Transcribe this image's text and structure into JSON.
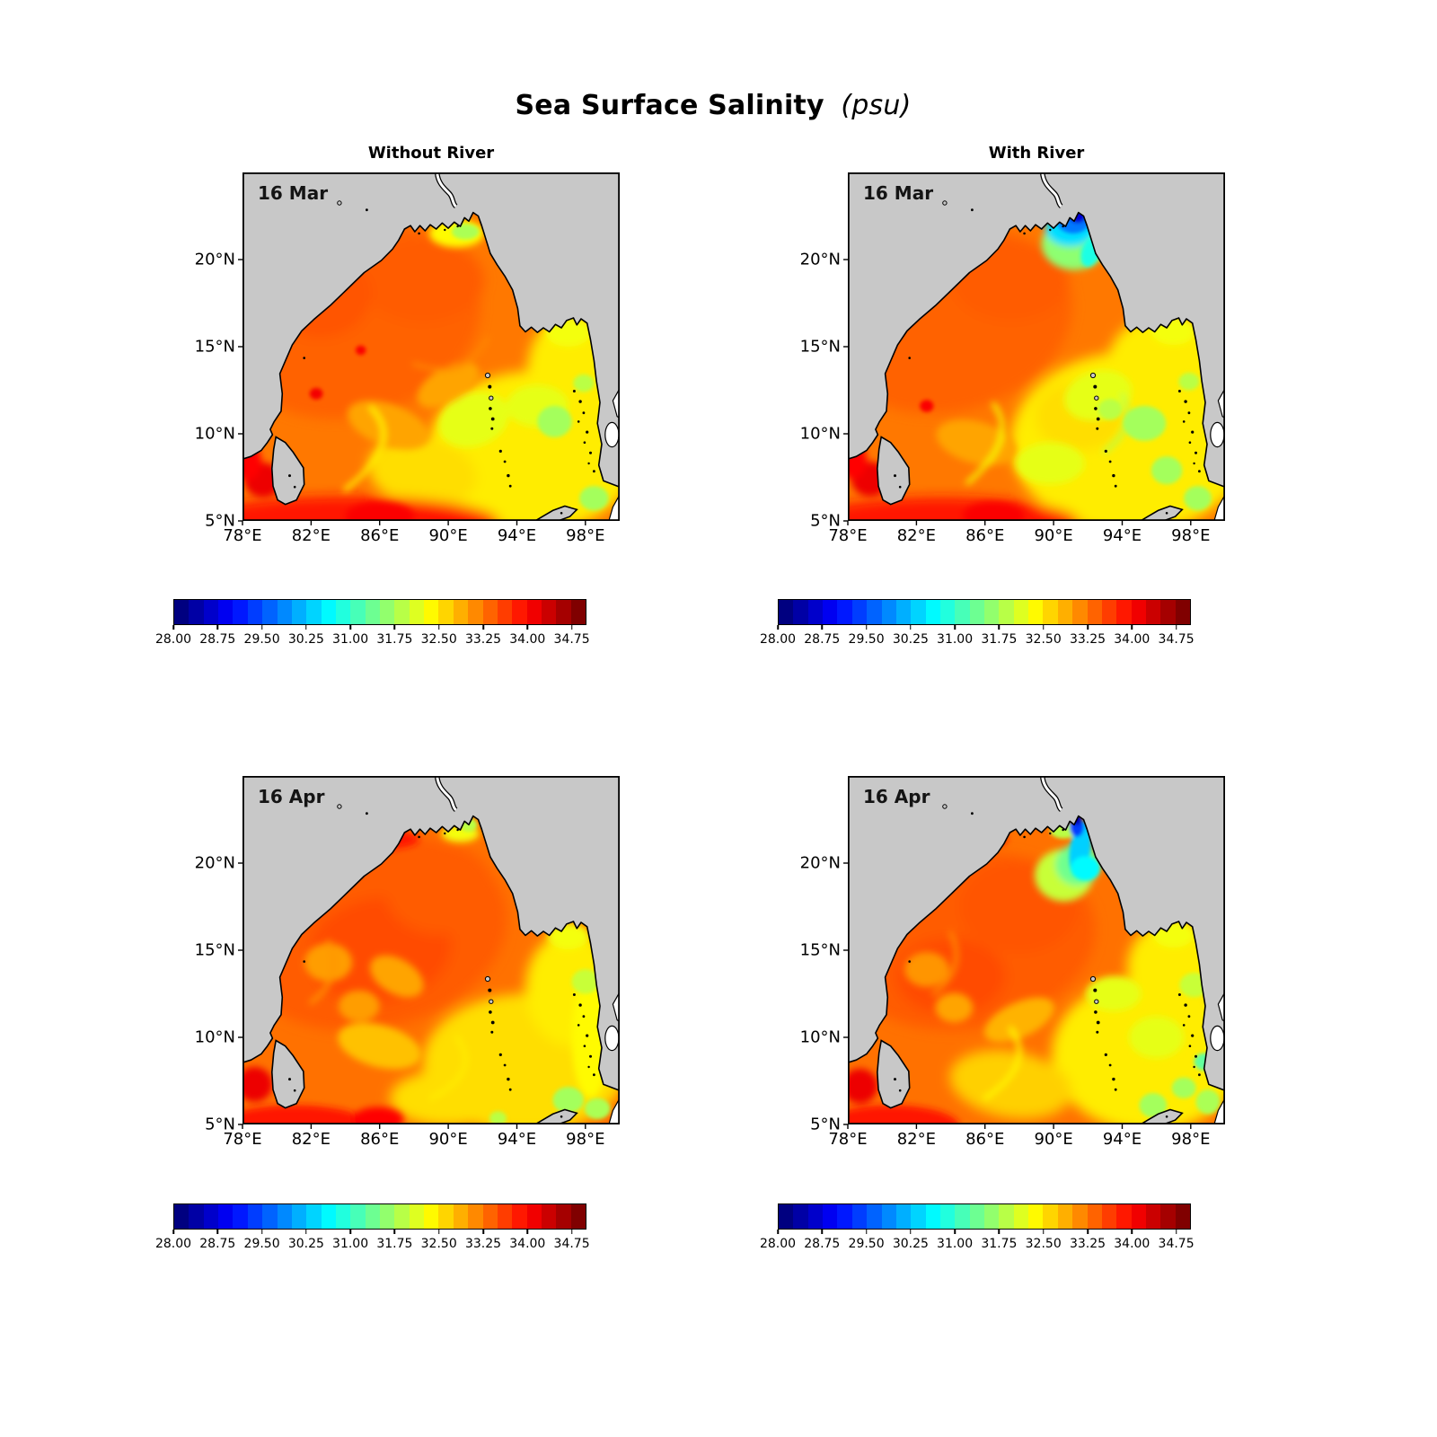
{
  "figure": {
    "title": "Sea Surface Salinity",
    "title_unit": "(psu)",
    "background": "#ffffff"
  },
  "columns": [
    {
      "title": "Without River"
    },
    {
      "title": "With River"
    }
  ],
  "panels": [
    {
      "scenario": "Without River",
      "date_label": "16 Mar",
      "row": 0,
      "col": 0
    },
    {
      "scenario": "With River",
      "date_label": "16 Mar",
      "row": 0,
      "col": 1
    },
    {
      "scenario": "Without River",
      "date_label": "16 Apr",
      "row": 1,
      "col": 0
    },
    {
      "scenario": "With River",
      "date_label": "16 Apr",
      "row": 1,
      "col": 1
    }
  ],
  "axes": {
    "x_tick_labels": [
      "78°E",
      "82°E",
      "86°E",
      "90°E",
      "94°E",
      "98°E"
    ],
    "x_tick_values": [
      78,
      82,
      86,
      90,
      94,
      98
    ],
    "y_tick_labels": [
      "5°N",
      "10°N",
      "15°N",
      "20°N"
    ],
    "y_tick_values": [
      5,
      10,
      15,
      20
    ],
    "lon_range": [
      78,
      100
    ],
    "lat_range": [
      5,
      25
    ]
  },
  "colorbar": {
    "tick_labels": [
      "28.00",
      "28.75",
      "29.50",
      "30.25",
      "31.00",
      "31.75",
      "32.50",
      "33.25",
      "34.00",
      "34.75"
    ],
    "tick_values": [
      28.0,
      28.75,
      29.5,
      30.25,
      31.0,
      31.75,
      32.5,
      33.25,
      34.0,
      34.75
    ],
    "vmin": 28,
    "vmax": 35,
    "n_levels": 28,
    "colormap": "jet"
  },
  "colors": {
    "land": "#c8c8c8",
    "coastline": "#000000",
    "frame": "#000000",
    "outside_domain": "#ffffff",
    "plume_core": "#0000d7",
    "open_ocean_orange": "#ff7800"
  },
  "chart_data": {
    "type": "heatmap",
    "title": "Sea Surface Salinity (psu)",
    "region": "Bay of Bengal",
    "grid": "2 columns (Without River, With River) x 2 rows (16 Mar, 16 Apr); one jet colorbar under each panel",
    "x": {
      "label": "Longitude",
      "unit": "°E",
      "ticks": [
        78,
        82,
        86,
        90,
        94,
        98
      ],
      "range": [
        78,
        100
      ]
    },
    "y": {
      "label": "Latitude",
      "unit": "°N",
      "ticks": [
        5,
        10,
        15,
        20
      ],
      "range": [
        5,
        25
      ]
    },
    "color_scale": {
      "colormap": "jet",
      "unit": "psu",
      "min": 28,
      "max": 35,
      "levels": 28,
      "ticks": [
        28.0,
        28.75,
        29.5,
        30.25,
        31.0,
        31.75,
        32.5,
        33.25,
        34.0,
        34.75
      ]
    },
    "panels": [
      {
        "row": 0,
        "col": 0,
        "scenario": "Without River",
        "date": "16 Mar",
        "open_ocean_psu": [
          32.5,
          34.25
        ],
        "south_boundary_psu": 34.25,
        "east_basin_psu": [
          31.75,
          32.75
        ],
        "river_plume": false
      },
      {
        "row": 0,
        "col": 1,
        "scenario": "With River",
        "date": "16 Mar",
        "open_ocean_psu": [
          32.5,
          34.25
        ],
        "south_boundary_psu": 34.25,
        "east_basin_psu": [
          31.5,
          32.75
        ],
        "river_plume": true,
        "plume_min_psu": 28.5,
        "plume_extent": "Ganges-Brahmaputra delta, ~89.5-92.5°E, 21-22.7°N"
      },
      {
        "row": 1,
        "col": 0,
        "scenario": "Without River",
        "date": "16 Apr",
        "open_ocean_psu": [
          32.75,
          34.25
        ],
        "south_boundary_psu": 34.25,
        "east_basin_psu": [
          31.75,
          32.75
        ],
        "river_plume": false
      },
      {
        "row": 1,
        "col": 1,
        "scenario": "With River",
        "date": "16 Apr",
        "open_ocean_psu": [
          32.75,
          34.25
        ],
        "south_boundary_psu": 34.25,
        "east_basin_psu": [
          31.5,
          32.75
        ],
        "river_plume": true,
        "plume_min_psu": 28.4,
        "plume_extent": "tongue from delta ~91.5°E, 22.6°N south to ~19.3°N"
      }
    ]
  }
}
